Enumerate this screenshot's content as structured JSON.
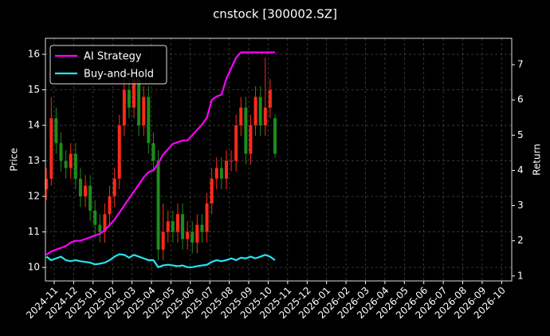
{
  "chart_data": {
    "type": "candlestick",
    "title": "cnstock [300002.SZ]",
    "ylabel": "Price",
    "y2label": "Return",
    "x": [
      -0.4,
      -0.15,
      0.1,
      0.35,
      0.6,
      0.85,
      1.1,
      1.35,
      1.6,
      1.85,
      2.1,
      2.35,
      2.6,
      2.85,
      3.1,
      3.35,
      3.6,
      3.85,
      4.1,
      4.35,
      4.6,
      4.85,
      5.1,
      5.35,
      5.6,
      5.85,
      6.1,
      6.35,
      6.6,
      6.85,
      7.1,
      7.35,
      7.6,
      7.85,
      8.1,
      8.35,
      8.6,
      8.85,
      9.1,
      9.35,
      9.6,
      9.85,
      10.1,
      10.35,
      10.6,
      10.85,
      11.1,
      11.35
    ],
    "open": [
      12.2,
      12.5,
      14.2,
      13.5,
      13.0,
      12.8,
      13.2,
      12.5,
      12.0,
      12.3,
      11.6,
      11.2,
      11.0,
      11.5,
      12.0,
      12.5,
      14.0,
      15.0,
      14.5,
      15.3,
      14.0,
      14.8,
      13.5,
      13.0,
      10.5,
      11.0,
      11.3,
      11.0,
      11.5,
      10.8,
      11.0,
      10.7,
      11.2,
      11.0,
      11.8,
      12.5,
      12.8,
      12.5,
      13.0,
      13.0,
      14.0,
      14.5,
      13.2,
      14.0,
      14.8,
      14.0,
      14.5,
      14.2
    ],
    "high": [
      12.8,
      14.8,
      14.5,
      13.8,
      13.3,
      13.5,
      13.5,
      12.8,
      12.6,
      12.6,
      11.9,
      11.5,
      11.8,
      12.3,
      12.8,
      14.3,
      15.6,
      15.3,
      15.8,
      15.6,
      15.1,
      15.1,
      13.8,
      13.3,
      11.8,
      11.6,
      11.6,
      11.8,
      11.8,
      11.3,
      11.3,
      11.5,
      11.5,
      12.1,
      12.8,
      13.1,
      13.1,
      13.3,
      13.3,
      14.3,
      14.8,
      14.8,
      14.3,
      15.1,
      15.1,
      15.9,
      15.3,
      14.3
    ],
    "low": [
      11.9,
      12.3,
      13.2,
      12.7,
      12.5,
      12.5,
      12.2,
      11.7,
      11.7,
      11.3,
      10.9,
      10.7,
      10.7,
      11.2,
      11.7,
      12.2,
      13.7,
      14.2,
      14.2,
      13.7,
      13.7,
      13.2,
      12.7,
      10.2,
      10.2,
      10.7,
      10.7,
      10.7,
      10.5,
      10.5,
      10.4,
      10.4,
      10.7,
      10.7,
      11.5,
      12.2,
      12.2,
      12.2,
      12.7,
      12.7,
      13.7,
      12.9,
      12.9,
      13.7,
      13.7,
      13.7,
      14.2,
      13.1
    ],
    "close": [
      12.5,
      14.2,
      13.5,
      13.0,
      12.8,
      13.2,
      12.5,
      12.0,
      12.3,
      11.6,
      11.2,
      11.0,
      11.5,
      12.0,
      12.5,
      14.0,
      15.0,
      14.5,
      15.3,
      14.0,
      14.8,
      13.5,
      13.0,
      10.5,
      11.0,
      11.3,
      11.0,
      11.5,
      10.8,
      11.0,
      10.7,
      11.2,
      11.0,
      11.8,
      12.5,
      12.8,
      12.5,
      13.0,
      13.0,
      14.0,
      14.5,
      13.2,
      14.0,
      14.8,
      14.0,
      14.5,
      15.0,
      13.2
    ],
    "up_color": "#ff2a1a",
    "down_color": "#1c8c1c",
    "series": [
      {
        "name": "AI Strategy",
        "color": "#ff00ff",
        "axis": "y2",
        "values": [
          1.6,
          1.7,
          1.75,
          1.8,
          1.85,
          1.95,
          2.0,
          2.0,
          2.05,
          2.1,
          2.15,
          2.2,
          2.3,
          2.45,
          2.6,
          2.8,
          3.0,
          3.2,
          3.4,
          3.6,
          3.8,
          3.95,
          4.0,
          4.2,
          4.45,
          4.6,
          4.75,
          4.8,
          4.85,
          4.85,
          5.0,
          5.15,
          5.3,
          5.5,
          6.0,
          6.1,
          6.15,
          6.6,
          6.9,
          7.2,
          7.35,
          7.35,
          7.35,
          7.35,
          7.35,
          7.35,
          7.35,
          7.35
        ]
      },
      {
        "name": "Buy-and-Hold",
        "color": "#22e5ef",
        "axis": "y2",
        "values": [
          1.55,
          1.45,
          1.5,
          1.55,
          1.45,
          1.42,
          1.45,
          1.42,
          1.4,
          1.38,
          1.33,
          1.35,
          1.38,
          1.45,
          1.55,
          1.62,
          1.6,
          1.52,
          1.6,
          1.55,
          1.5,
          1.45,
          1.45,
          1.25,
          1.3,
          1.32,
          1.3,
          1.28,
          1.3,
          1.25,
          1.25,
          1.28,
          1.3,
          1.32,
          1.4,
          1.45,
          1.42,
          1.45,
          1.5,
          1.45,
          1.52,
          1.5,
          1.55,
          1.5,
          1.55,
          1.6,
          1.55,
          1.45
        ]
      }
    ],
    "xlim": [
      -0.45,
      23.52
    ],
    "xticks": [
      {
        "value": 0,
        "label": "2024-11"
      },
      {
        "value": 1,
        "label": "2024-12"
      },
      {
        "value": 2,
        "label": "2025-01"
      },
      {
        "value": 3,
        "label": "2025-02"
      },
      {
        "value": 4,
        "label": "2025-03"
      },
      {
        "value": 5,
        "label": "2025-04"
      },
      {
        "value": 6,
        "label": "2025-05"
      },
      {
        "value": 7,
        "label": "2025-06"
      },
      {
        "value": 8,
        "label": "2025-07"
      },
      {
        "value": 9,
        "label": "2025-08"
      },
      {
        "value": 10,
        "label": "2025-09"
      },
      {
        "value": 11,
        "label": "2025-10"
      },
      {
        "value": 12,
        "label": "2025-11"
      },
      {
        "value": 13,
        "label": "2025-12"
      },
      {
        "value": 14,
        "label": "2026-01"
      },
      {
        "value": 15,
        "label": "2026-02"
      },
      {
        "value": 16,
        "label": "2026-03"
      },
      {
        "value": 17,
        "label": "2026-04"
      },
      {
        "value": 18,
        "label": "2026-05"
      },
      {
        "value": 19,
        "label": "2026-06"
      },
      {
        "value": 20,
        "label": "2026-07"
      },
      {
        "value": 21,
        "label": "2026-08"
      },
      {
        "value": 22,
        "label": "2026-09"
      },
      {
        "value": 23,
        "label": "2026-10"
      }
    ],
    "ylim": [
      9.62,
      16.45
    ],
    "yticks": [
      10,
      11,
      12,
      13,
      14,
      15,
      16
    ],
    "y2lim": [
      0.86,
      7.75
    ],
    "y2ticks": [
      1,
      2,
      3,
      4,
      5,
      6,
      7
    ],
    "grid": true,
    "legend": "upper left"
  }
}
